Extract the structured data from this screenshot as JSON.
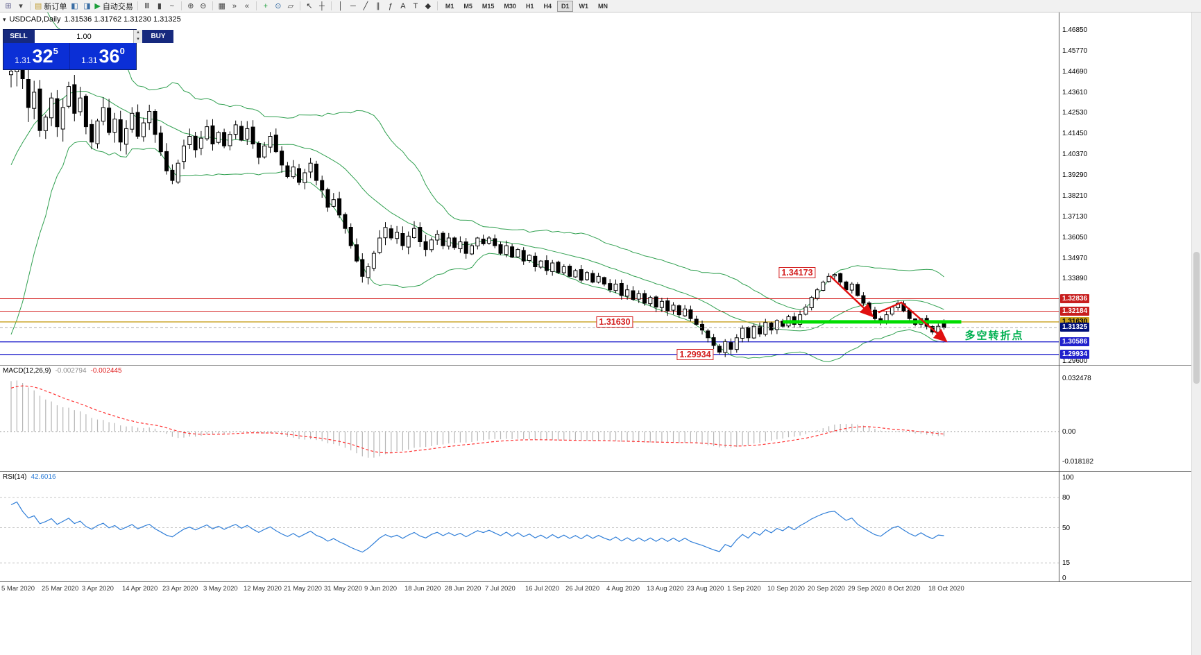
{
  "toolbar": {
    "groups": [
      {
        "items": [
          {
            "name": "new-chart",
            "glyph": "⊞",
            "color": "#5a5a8a"
          },
          {
            "name": "chart-profiles",
            "glyph": "▾",
            "color": "#444444"
          }
        ]
      },
      {
        "items": [
          {
            "name": "new-order",
            "glyph": "▤",
            "color": "#c09a2e",
            "label": "新订单"
          },
          {
            "name": "market-watch",
            "glyph": "◧",
            "color": "#3a6ea5"
          },
          {
            "name": "navigator",
            "glyph": "◨",
            "color": "#3a6ea5"
          },
          {
            "name": "auto-trading",
            "glyph": "▶",
            "color": "#1c9e3a",
            "label": "自动交易"
          }
        ]
      },
      {
        "items": [
          {
            "name": "bar-chart-mode",
            "glyph": "Ⅲ",
            "color": "#444444"
          },
          {
            "name": "candlestick-mode",
            "glyph": "▮",
            "color": "#444444"
          },
          {
            "name": "line-chart-mode",
            "glyph": "~",
            "color": "#444444"
          }
        ]
      },
      {
        "items": [
          {
            "name": "zoom-in",
            "glyph": "⊕",
            "color": "#444444"
          },
          {
            "name": "zoom-out",
            "glyph": "⊖",
            "color": "#444444"
          }
        ]
      },
      {
        "items": [
          {
            "name": "tile-windows",
            "glyph": "▦",
            "color": "#444444"
          },
          {
            "name": "auto-scroll",
            "glyph": "»",
            "color": "#444444"
          },
          {
            "name": "chart-shift",
            "glyph": "«",
            "color": "#444444"
          }
        ]
      },
      {
        "items": [
          {
            "name": "indicators",
            "glyph": "+",
            "color": "#1c9e3a"
          },
          {
            "name": "periods",
            "glyph": "⊙",
            "color": "#3a6ea5"
          },
          {
            "name": "templates",
            "glyph": "▱",
            "color": "#444444"
          }
        ]
      },
      {
        "items": [
          {
            "name": "cursor",
            "glyph": "↖",
            "color": "#333333"
          },
          {
            "name": "crosshair",
            "glyph": "┼",
            "color": "#333333"
          }
        ]
      },
      {
        "items": [
          {
            "name": "vertical-line",
            "glyph": "│",
            "color": "#333333"
          },
          {
            "name": "horizontal-line",
            "glyph": "─",
            "color": "#333333"
          },
          {
            "name": "trendline",
            "glyph": "╱",
            "color": "#333333"
          },
          {
            "name": "equidistant-channel",
            "glyph": "∥",
            "color": "#333333"
          },
          {
            "name": "fibonacci",
            "glyph": "ƒ",
            "color": "#333333"
          },
          {
            "name": "text",
            "glyph": "A",
            "color": "#333333"
          },
          {
            "name": "text-label",
            "glyph": "T",
            "color": "#333333"
          },
          {
            "name": "shapes",
            "glyph": "◆",
            "color": "#333333"
          }
        ]
      }
    ],
    "timeframes": [
      "M1",
      "M5",
      "M15",
      "M30",
      "H1",
      "H4",
      "D1",
      "W1",
      "MN"
    ],
    "active_timeframe": "D1"
  },
  "chart": {
    "title": "USDCAD,Daily",
    "title_values": "1.31536 1.31762 1.31230 1.31325",
    "one_click_glyph": "▾",
    "trade_panel": {
      "sell_label": "SELL",
      "buy_label": "BUY",
      "volume": "1.00",
      "spin_up": "▴",
      "spin_down": "▾",
      "sell": {
        "prefix": "1.31",
        "big": "32",
        "sup": "5"
      },
      "buy": {
        "prefix": "1.31",
        "big": "36",
        "sup": "0"
      }
    }
  },
  "chart_data": {
    "type": "candlestick",
    "symbol": "USDCAD",
    "timeframe": "Daily",
    "current_bar": {
      "open": 1.31536,
      "high": 1.31762,
      "low": 1.3123,
      "close": 1.31325
    },
    "price_axis": {
      "plain_ticks": [
        "1.46850",
        "1.45770",
        "1.44690",
        "1.43610",
        "1.42530",
        "1.41450",
        "1.40370",
        "1.39290",
        "1.38210",
        "1.37130",
        "1.36050",
        "1.34970",
        "1.33890",
        "1.29600"
      ]
    },
    "level_lines": [
      {
        "price": 1.32836,
        "color": "#d42020",
        "width": 1,
        "label": "1.32836",
        "label_bg": "#c81e1e",
        "label_fg": "#ffffff"
      },
      {
        "price": 1.32184,
        "color": "#d42020",
        "width": 1,
        "label": "1.32184",
        "label_bg": "#c81e1e",
        "label_fg": "#ffffff"
      },
      {
        "price": 1.3163,
        "color": "#c8a01e",
        "width": 1.4,
        "label": "1.31630",
        "label_bg": "#c8a01e",
        "label_fg": "#000000"
      },
      {
        "price": 1.30586,
        "color": "#2020cc",
        "width": 1.4,
        "label": "1.30586",
        "label_bg": "#2020cc",
        "label_fg": "#ffffff"
      },
      {
        "price": 1.29934,
        "color": "#2020cc",
        "width": 1.4,
        "label": "1.29934",
        "label_bg": "#2020cc",
        "label_fg": "#ffffff"
      }
    ],
    "current_price_label": {
      "text": "1.31325",
      "price": 1.31325,
      "bg": "#001078",
      "fg": "#ffffff"
    },
    "pre_closes": [
      1.327,
      1.331,
      1.325,
      1.33,
      1.334,
      1.329,
      1.333,
      1.338,
      1.332,
      1.34,
      1.352,
      1.365,
      1.36,
      1.378,
      1.395,
      1.388,
      1.41,
      1.425,
      1.418,
      1.435,
      1.448,
      1.44,
      1.452,
      1.46,
      1.446
    ],
    "closes": [
      1.447,
      1.461,
      1.443,
      1.428,
      1.436,
      1.416,
      1.423,
      1.433,
      1.418,
      1.428,
      1.439,
      1.425,
      1.433,
      1.418,
      1.41,
      1.421,
      1.428,
      1.415,
      1.422,
      1.41,
      1.417,
      1.425,
      1.413,
      1.42,
      1.426,
      1.414,
      1.405,
      1.395,
      1.39,
      1.399,
      1.408,
      1.413,
      1.406,
      1.412,
      1.418,
      1.409,
      1.415,
      1.408,
      1.414,
      1.419,
      1.411,
      1.417,
      1.409,
      1.402,
      1.408,
      1.413,
      1.405,
      1.398,
      1.392,
      1.397,
      1.389,
      1.394,
      1.399,
      1.39,
      1.385,
      1.376,
      1.38,
      1.372,
      1.365,
      1.356,
      1.348,
      1.34,
      1.345,
      1.352,
      1.36,
      1.3655,
      1.36,
      1.363,
      1.356,
      1.361,
      1.365,
      1.358,
      1.354,
      1.359,
      1.362,
      1.356,
      1.36,
      1.355,
      1.358,
      1.352,
      1.356,
      1.36,
      1.357,
      1.36,
      1.356,
      1.352,
      1.356,
      1.35,
      1.354,
      1.348,
      1.351,
      1.345,
      1.348,
      1.343,
      1.347,
      1.342,
      1.345,
      1.34,
      1.343,
      1.338,
      1.342,
      1.337,
      1.34,
      1.336,
      1.333,
      1.336,
      1.33,
      1.333,
      1.328,
      1.331,
      1.326,
      1.329,
      1.324,
      1.327,
      1.322,
      1.325,
      1.32,
      1.323,
      1.318,
      1.315,
      1.312,
      1.308,
      1.304,
      1.3005,
      1.306,
      1.302,
      1.308,
      1.313,
      1.308,
      1.314,
      1.31,
      1.316,
      1.312,
      1.317,
      1.314,
      1.319,
      1.315,
      1.32,
      1.324,
      1.329,
      1.333,
      1.337,
      1.34,
      1.341,
      1.337,
      1.333,
      1.336,
      1.33,
      1.326,
      1.322,
      1.318,
      1.316,
      1.32,
      1.324,
      1.326,
      1.322,
      1.318,
      1.315,
      1.318,
      1.314,
      1.311,
      1.314,
      1.31325
    ],
    "pins": [
      {
        "bar": 1,
        "high": 1.4685
      },
      {
        "bar": 123,
        "low": 1.29934
      },
      {
        "bar": 143,
        "high": 1.34173
      },
      {
        "bar": 162,
        "open": 1.31536,
        "high": 1.31762,
        "low": 1.3123,
        "close": 1.31325
      }
    ],
    "volatility": [
      [
        0,
        0.013
      ],
      [
        12,
        0.009
      ],
      [
        30,
        0.0062
      ],
      [
        55,
        0.0058
      ],
      [
        65,
        0.006
      ],
      [
        80,
        0.0042
      ],
      [
        105,
        0.0038
      ],
      [
        125,
        0.0036
      ],
      [
        150,
        0.003
      ],
      [
        162,
        0.0026
      ]
    ],
    "bollinger": {
      "period": 20,
      "deviation": 2,
      "color": "#30a050"
    },
    "dates": [
      "5 Mar 2020",
      "25 Mar 2020",
      "3 Apr 2020",
      "14 Apr 2020",
      "23 Apr 2020",
      "3 May 2020",
      "12 May 2020",
      "21 May 2020",
      "31 May 2020",
      "9 Jun 2020",
      "18 Jun 2020",
      "28 Jun 2020",
      "7 Jul 2020",
      "16 Jul 2020",
      "26 Jul 2020",
      "4 Aug 2020",
      "13 Aug 2020",
      "23 Aug 2020",
      "1 Sep 2020",
      "10 Sep 2020",
      "20 Sep 2020",
      "29 Sep 2020",
      "8 Oct 2020",
      "18 Oct 2020"
    ],
    "bars_per_label": 7,
    "macd": {
      "label": "MACD(12,26,9)",
      "value_main": "-0.002794",
      "value_signal": "-0.002445",
      "axis_max": "0.032478",
      "axis_zero": "0.00",
      "axis_min": "-0.018182",
      "fast": 12,
      "slow": 26,
      "signal_period": 9,
      "histogram_color": "#b6b6b6",
      "signal_color": "#ff3030"
    },
    "rsi": {
      "label": "RSI(14)",
      "value": "42.6016",
      "period": 14,
      "levels": [
        "80",
        "50",
        "15"
      ],
      "axis_top": "100",
      "axis_bottom": "0",
      "line_color": "#2f7ed8"
    },
    "annotations": {
      "price_boxes": [
        {
          "text": "1.34173",
          "bar": 136.5,
          "price": 1.342
        },
        {
          "text": "1.31630",
          "bar": 104.8,
          "price": 1.3163
        },
        {
          "text": "1.29934",
          "bar": 118.8,
          "price": 1.29934
        }
      ],
      "support_segment": {
        "price": 1.3163,
        "bar_start": 134,
        "bar_end": 165,
        "color": "#00dd00",
        "width": 5
      },
      "arrows": [
        {
          "points": [
            [
              142.2,
              1.3403
            ],
            [
              149.6,
              1.3192
            ]
          ]
        },
        {
          "points": [
            [
              150.6,
              1.3212
            ],
            [
              154.6,
              1.3264
            ],
            [
              162.4,
              1.3062
            ]
          ]
        }
      ],
      "trend_color": "#e01010",
      "note": {
        "text": "多空转折点",
        "bar": 170.7,
        "price": 1.3094,
        "color": "#00b050"
      }
    }
  }
}
